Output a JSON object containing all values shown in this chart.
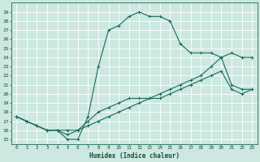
{
  "xlabel": "Humidex (Indice chaleur)",
  "bg_color": "#cce8e0",
  "grid_color": "#ffffff",
  "line_color": "#1a6b5a",
  "xlim": [
    -0.5,
    23.5
  ],
  "ylim": [
    14.5,
    30.0
  ],
  "xticks": [
    0,
    1,
    2,
    3,
    4,
    5,
    6,
    7,
    8,
    9,
    10,
    11,
    12,
    13,
    14,
    15,
    16,
    17,
    18,
    19,
    20,
    21,
    22,
    23
  ],
  "yticks": [
    15,
    16,
    17,
    18,
    19,
    20,
    21,
    22,
    23,
    24,
    25,
    26,
    27,
    28,
    29
  ],
  "line1_x": [
    0,
    1,
    2,
    3,
    4,
    5,
    6,
    7,
    8,
    9,
    10,
    11,
    12,
    13,
    14,
    15,
    16,
    17,
    18,
    19,
    20,
    21,
    22,
    23
  ],
  "line1_y": [
    17.5,
    17.0,
    16.5,
    16.0,
    16.0,
    16.0,
    16.0,
    16.5,
    17.0,
    17.5,
    18.0,
    18.5,
    19.0,
    19.5,
    19.5,
    20.0,
    20.5,
    21.0,
    21.5,
    22.0,
    22.5,
    20.5,
    20.0,
    20.5
  ],
  "line2_x": [
    0,
    1,
    2,
    3,
    4,
    5,
    6,
    7,
    8,
    9,
    10,
    11,
    12,
    13,
    14,
    15,
    16,
    17,
    18,
    19,
    20,
    21,
    22,
    23
  ],
  "line2_y": [
    17.5,
    17.0,
    16.5,
    16.0,
    16.0,
    15.5,
    16.0,
    17.0,
    18.0,
    18.5,
    19.0,
    19.5,
    19.5,
    19.5,
    20.0,
    20.5,
    21.0,
    21.5,
    22.0,
    23.0,
    24.0,
    24.5,
    24.0,
    24.0
  ],
  "line3_x": [
    0,
    1,
    2,
    3,
    4,
    5,
    6,
    7,
    8,
    9,
    10,
    11,
    12,
    13,
    14,
    15,
    16,
    17,
    18,
    19,
    20,
    21,
    22,
    23
  ],
  "line3_y": [
    17.5,
    17.0,
    16.5,
    16.0,
    16.0,
    15.0,
    15.0,
    17.5,
    23.0,
    27.0,
    27.5,
    28.5,
    29.0,
    28.5,
    28.5,
    28.0,
    25.5,
    24.5,
    24.5,
    24.5,
    24.0,
    21.0,
    20.5,
    20.5
  ]
}
